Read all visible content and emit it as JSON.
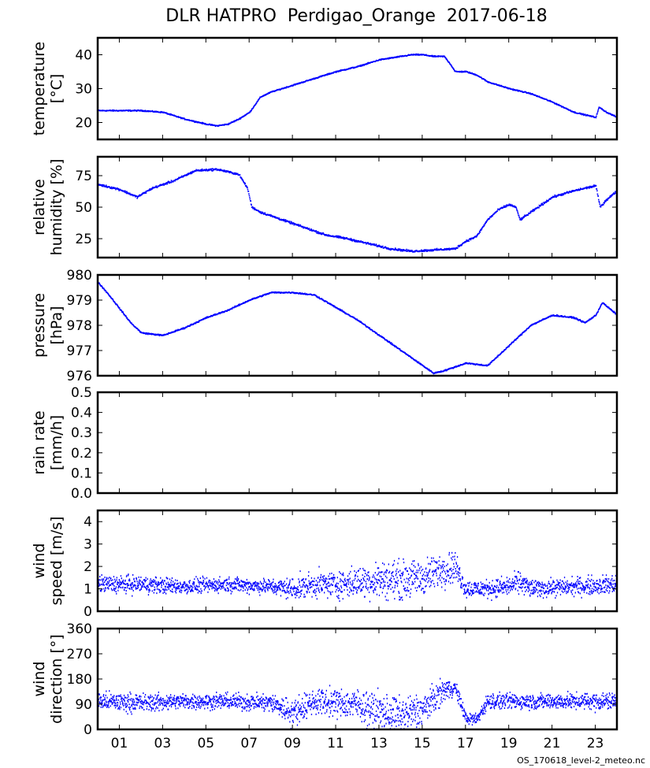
{
  "title": "DLR HATPRO  Perdigao_Orange  2017-06-18",
  "footer_filename": "OS_170618_level-2_meteo.nc",
  "point_color": "#0000ff",
  "chart_data": {
    "type": "scatter",
    "x_unit": "hour of day",
    "xlim": [
      0,
      24
    ],
    "xticks": [
      1,
      3,
      5,
      7,
      9,
      11,
      13,
      15,
      17,
      19,
      21,
      23
    ],
    "xtick_labels": [
      "01",
      "03",
      "05",
      "07",
      "09",
      "11",
      "13",
      "15",
      "17",
      "19",
      "21",
      "23"
    ],
    "panels": [
      {
        "id": "temperature",
        "ylabel": [
          "temperature",
          "[°C]"
        ],
        "ylim": [
          15,
          45
        ],
        "yticks": [
          20,
          30,
          40
        ],
        "ytick_labels": [
          "20",
          "30",
          "40"
        ],
        "series": [
          {
            "name": "temperature",
            "kind": "line",
            "x": [
              0,
              1,
              2,
              3,
              4,
              5,
              5.5,
              6,
              6.5,
              7,
              7.5,
              8,
              9,
              10,
              11,
              12,
              13,
              14,
              14.5,
              15,
              15.5,
              16,
              16.3,
              16.5,
              17,
              17.5,
              18,
              19,
              20,
              21,
              22,
              23,
              23.15,
              23.5,
              24
            ],
            "y": [
              23.5,
              23.5,
              23.5,
              23,
              21,
              19.5,
              19,
              19.5,
              21,
              23,
              27.5,
              29,
              31,
              33,
              35,
              36.5,
              38.5,
              39.5,
              40,
              40,
              39.5,
              39.5,
              37,
              35,
              35,
              34,
              32,
              30,
              28.5,
              26,
              23,
              21.5,
              24.5,
              23,
              21.5
            ],
            "noise": 0.25
          }
        ]
      },
      {
        "id": "relative_humidity",
        "ylabel": [
          "relative",
          "humidity [%]"
        ],
        "ylim": [
          10,
          90
        ],
        "yticks": [
          25,
          50,
          75
        ],
        "ytick_labels": [
          "25",
          "50",
          "75"
        ],
        "series": [
          {
            "name": "relative humidity",
            "kind": "line",
            "x": [
              0,
              1,
              1.8,
              2.5,
              3.5,
              4.5,
              5.5,
              6.5,
              6.9,
              7.1,
              7.5,
              8.5,
              9.5,
              10.5,
              11.5,
              12.5,
              13.5,
              14.5,
              15.5,
              16.5,
              17,
              17.5,
              18,
              18.5,
              19,
              19.3,
              19.5,
              20,
              21,
              22,
              23,
              23.2,
              23.5,
              24
            ],
            "y": [
              68,
              64,
              58,
              65,
              71,
              79,
              80,
              76,
              65,
              50,
              46,
              40,
              34,
              28,
              25,
              21,
              17,
              15,
              16,
              17,
              23,
              27,
              40,
              48,
              52,
              50,
              40,
              46,
              58,
              63,
              67,
              50,
              56,
              63
            ],
            "noise": 1.2
          }
        ]
      },
      {
        "id": "pressure",
        "ylabel": [
          "pressure",
          "[hPa]"
        ],
        "ylim": [
          976,
          980
        ],
        "yticks": [
          976,
          977,
          978,
          979,
          980
        ],
        "ytick_labels": [
          "976",
          "977",
          "978",
          "979",
          "980"
        ],
        "series": [
          {
            "name": "pressure",
            "kind": "line",
            "x": [
              0,
              0.5,
              1.5,
              2,
              3,
              4,
              5,
              6,
              7,
              8,
              9,
              10,
              11,
              12,
              13,
              14,
              15,
              15.5,
              16,
              17,
              18,
              19,
              20,
              21,
              22,
              22.5,
              23,
              23.3,
              24
            ],
            "y": [
              979.7,
              979.2,
              978.1,
              977.7,
              977.6,
              977.9,
              978.3,
              978.6,
              979.0,
              979.3,
              979.3,
              979.2,
              978.7,
              978.2,
              977.6,
              977.0,
              976.4,
              976.1,
              976.2,
              976.5,
              976.4,
              977.2,
              978.0,
              978.4,
              978.3,
              978.1,
              978.4,
              978.9,
              978.4
            ],
            "noise": 0.04
          }
        ]
      },
      {
        "id": "rain_rate",
        "ylabel": [
          "rain rate",
          "[mm/h]"
        ],
        "ylim": [
          0,
          0.5
        ],
        "yticks": [
          0,
          0.1,
          0.2,
          0.3,
          0.4,
          0.5
        ],
        "ytick_labels": [
          "0.0",
          "0.1",
          "0.2",
          "0.3",
          "0.4",
          "0.5"
        ],
        "series": []
      },
      {
        "id": "wind_speed",
        "ylabel": [
          "wind",
          "speed [m/s]"
        ],
        "ylim": [
          0,
          4.5
        ],
        "yticks": [
          0,
          1,
          2,
          3,
          4
        ],
        "ytick_labels": [
          "0",
          "1",
          "2",
          "3",
          "4"
        ],
        "series": [
          {
            "name": "wind speed",
            "kind": "scatter",
            "x": [
              0,
              2,
              4,
              6,
              8,
              9,
              10,
              11,
              12,
              13,
              14,
              15,
              16,
              16.5,
              17,
              18,
              19,
              19.5,
              20,
              22,
              24
            ],
            "y": [
              1.2,
              1.2,
              1.1,
              1.2,
              1.1,
              1.0,
              1.2,
              1.2,
              1.3,
              1.4,
              1.4,
              1.5,
              1.9,
              2.0,
              1.0,
              1.0,
              1.1,
              1.3,
              1.0,
              1.1,
              1.2
            ],
            "spread": [
              0.35,
              0.35,
              0.3,
              0.3,
              0.3,
              0.45,
              0.5,
              0.55,
              0.6,
              0.75,
              0.75,
              0.7,
              0.7,
              0.6,
              0.35,
              0.35,
              0.4,
              0.45,
              0.35,
              0.35,
              0.4
            ]
          }
        ]
      },
      {
        "id": "wind_direction",
        "ylabel": [
          "wind",
          "direction [°]"
        ],
        "ylim": [
          0,
          360
        ],
        "yticks": [
          0,
          90,
          180,
          270,
          360
        ],
        "ytick_labels": [
          "0",
          "90",
          "180",
          "270",
          "360"
        ],
        "series": [
          {
            "name": "wind direction",
            "kind": "scatter",
            "x": [
              0,
              2,
              4,
              6,
              8,
              9,
              10,
              11,
              12,
              13,
              14,
              15,
              16,
              16.5,
              17,
              17.5,
              18,
              20,
              22,
              24
            ],
            "y": [
              100,
              95,
              100,
              100,
              95,
              60,
              100,
              95,
              90,
              60,
              50,
              70,
              140,
              150,
              40,
              35,
              100,
              100,
              100,
              100
            ],
            "spread": [
              30,
              30,
              25,
              25,
              30,
              45,
              40,
              45,
              50,
              60,
              60,
              55,
              35,
              25,
              20,
              20,
              25,
              25,
              25,
              30
            ]
          }
        ]
      }
    ]
  }
}
